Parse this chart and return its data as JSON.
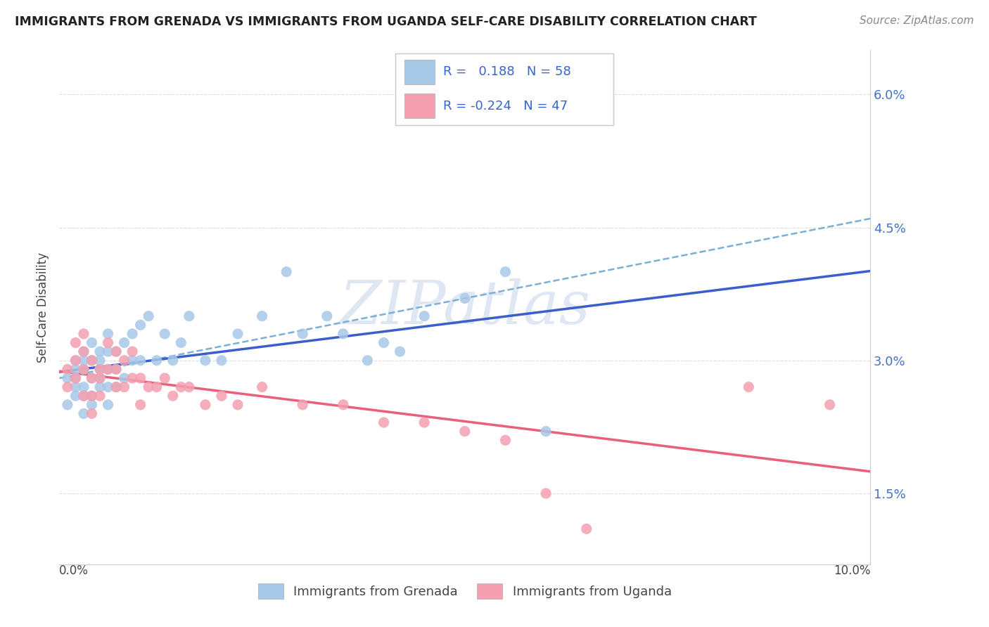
{
  "title": "IMMIGRANTS FROM GRENADA VS IMMIGRANTS FROM UGANDA SELF-CARE DISABILITY CORRELATION CHART",
  "source": "Source: ZipAtlas.com",
  "ylabel": "Self-Care Disability",
  "yticks": [
    0.015,
    0.03,
    0.045,
    0.06
  ],
  "ytick_labels": [
    "1.5%",
    "3.0%",
    "4.5%",
    "6.0%"
  ],
  "xlim": [
    0.0,
    0.1
  ],
  "ylim": [
    0.007,
    0.065
  ],
  "grenada_R": 0.188,
  "grenada_N": 58,
  "uganda_R": -0.224,
  "uganda_N": 47,
  "grenada_color": "#a8c8e8",
  "uganda_color": "#f4a0b0",
  "grenada_line_color": "#3a5fcd",
  "uganda_line_color": "#e8607a",
  "dashed_line_color": "#7bafd4",
  "background_color": "#ffffff",
  "watermark": "ZIPatlas",
  "grenada_x": [
    0.001,
    0.001,
    0.002,
    0.002,
    0.002,
    0.002,
    0.002,
    0.003,
    0.003,
    0.003,
    0.003,
    0.003,
    0.003,
    0.004,
    0.004,
    0.004,
    0.004,
    0.004,
    0.005,
    0.005,
    0.005,
    0.005,
    0.005,
    0.006,
    0.006,
    0.006,
    0.006,
    0.006,
    0.007,
    0.007,
    0.007,
    0.008,
    0.008,
    0.009,
    0.009,
    0.01,
    0.01,
    0.011,
    0.012,
    0.013,
    0.014,
    0.015,
    0.016,
    0.018,
    0.02,
    0.022,
    0.025,
    0.028,
    0.03,
    0.033,
    0.035,
    0.038,
    0.04,
    0.042,
    0.045,
    0.05,
    0.055,
    0.06
  ],
  "grenada_y": [
    0.028,
    0.025,
    0.03,
    0.028,
    0.026,
    0.029,
    0.027,
    0.031,
    0.029,
    0.027,
    0.03,
    0.026,
    0.024,
    0.032,
    0.03,
    0.028,
    0.026,
    0.025,
    0.031,
    0.029,
    0.027,
    0.03,
    0.028,
    0.033,
    0.031,
    0.029,
    0.027,
    0.025,
    0.031,
    0.029,
    0.027,
    0.032,
    0.028,
    0.033,
    0.03,
    0.034,
    0.03,
    0.035,
    0.03,
    0.033,
    0.03,
    0.032,
    0.035,
    0.03,
    0.03,
    0.033,
    0.035,
    0.04,
    0.033,
    0.035,
    0.033,
    0.03,
    0.032,
    0.031,
    0.035,
    0.037,
    0.04,
    0.022
  ],
  "uganda_x": [
    0.001,
    0.001,
    0.002,
    0.002,
    0.002,
    0.003,
    0.003,
    0.003,
    0.003,
    0.004,
    0.004,
    0.004,
    0.004,
    0.005,
    0.005,
    0.005,
    0.006,
    0.006,
    0.007,
    0.007,
    0.007,
    0.008,
    0.008,
    0.009,
    0.009,
    0.01,
    0.01,
    0.011,
    0.012,
    0.013,
    0.014,
    0.015,
    0.016,
    0.018,
    0.02,
    0.022,
    0.025,
    0.03,
    0.035,
    0.04,
    0.045,
    0.05,
    0.055,
    0.06,
    0.065,
    0.085,
    0.095
  ],
  "uganda_y": [
    0.029,
    0.027,
    0.032,
    0.03,
    0.028,
    0.033,
    0.031,
    0.029,
    0.026,
    0.03,
    0.028,
    0.026,
    0.024,
    0.029,
    0.028,
    0.026,
    0.032,
    0.029,
    0.031,
    0.029,
    0.027,
    0.03,
    0.027,
    0.031,
    0.028,
    0.028,
    0.025,
    0.027,
    0.027,
    0.028,
    0.026,
    0.027,
    0.027,
    0.025,
    0.026,
    0.025,
    0.027,
    0.025,
    0.025,
    0.023,
    0.023,
    0.022,
    0.021,
    0.015,
    0.011,
    0.027,
    0.025
  ],
  "dashed_line_x": [
    0.0,
    0.1
  ],
  "dashed_line_y": [
    0.028,
    0.046
  ]
}
